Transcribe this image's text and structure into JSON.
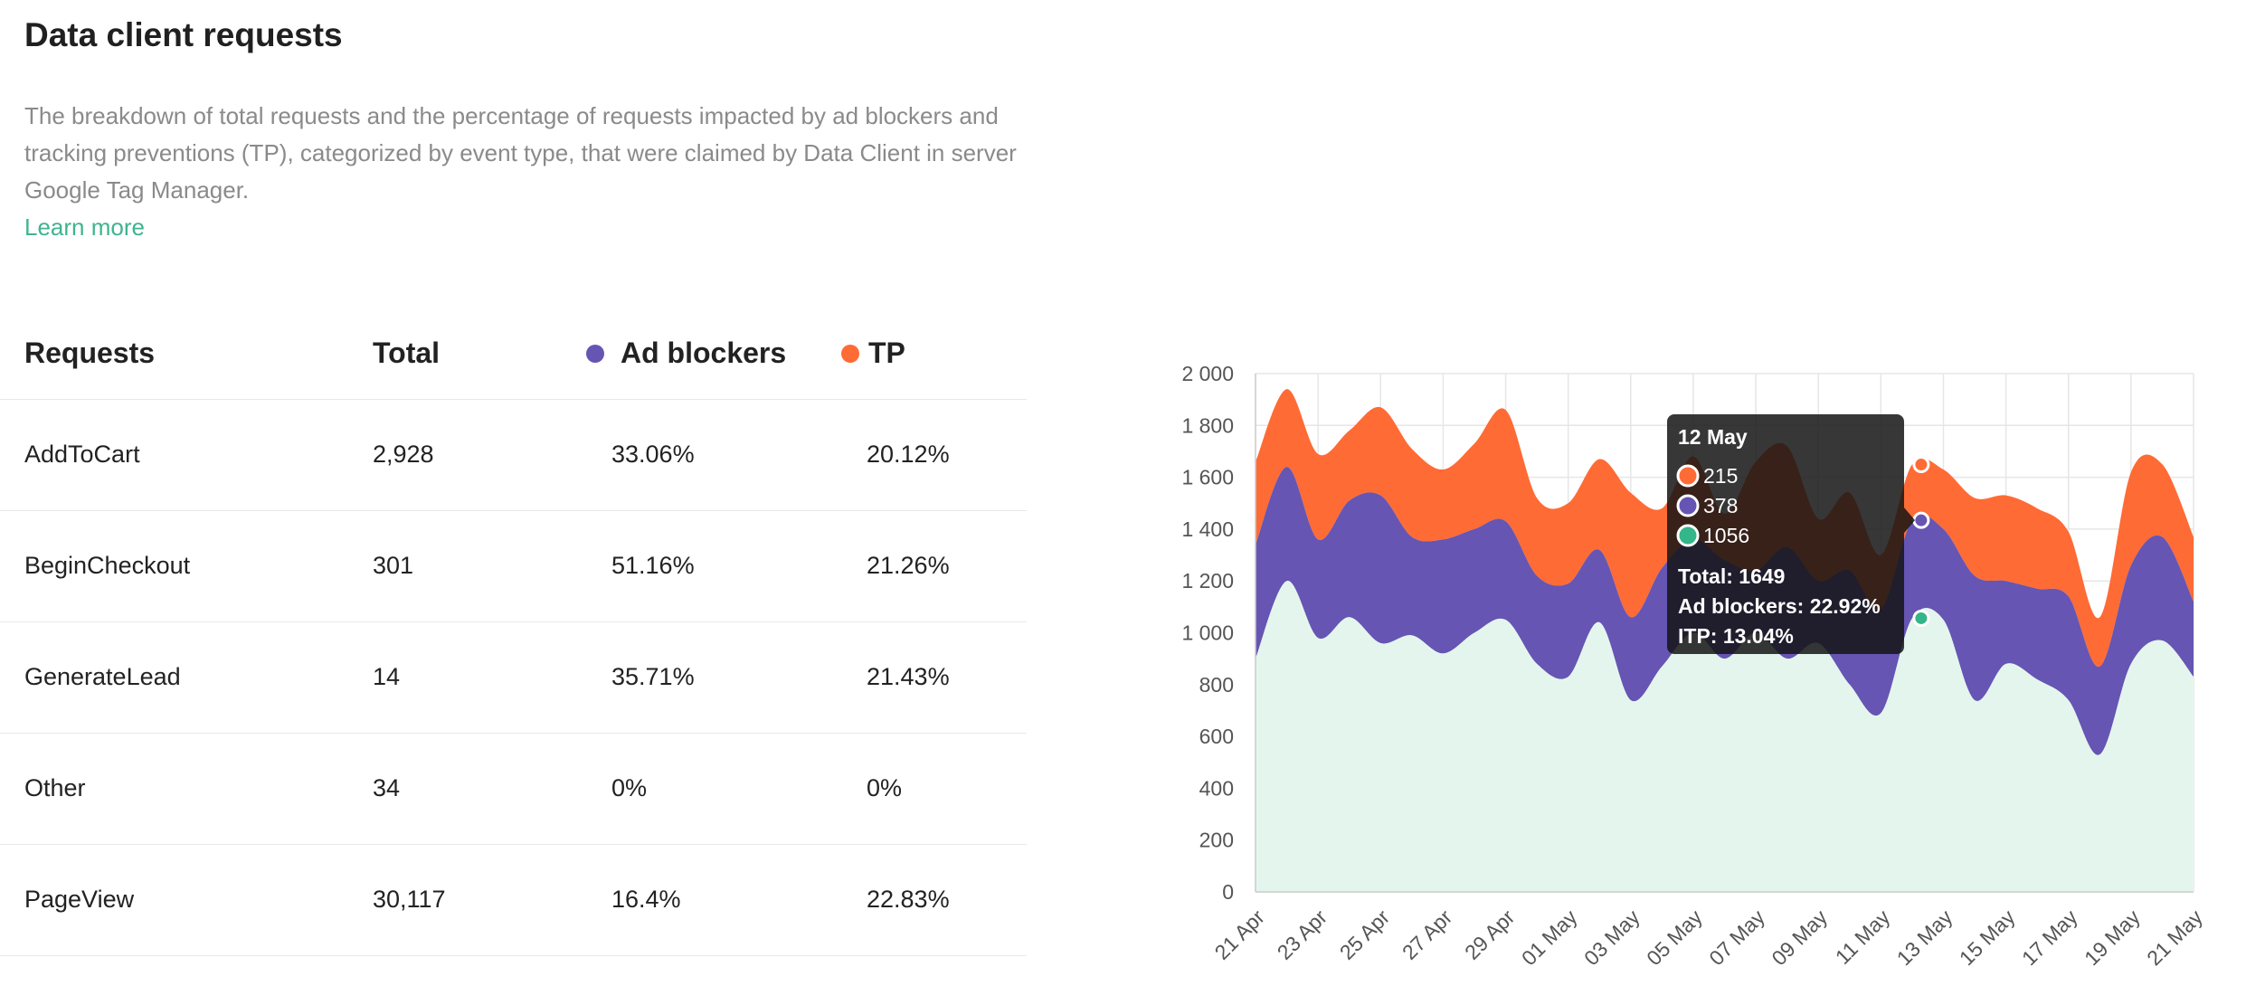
{
  "header": {
    "title": "Data client requests",
    "description": "The breakdown of total requests and the percentage of requests impacted by ad blockers and tracking preventions (TP), categorized by event type, that were claimed by Data Client in server Google Tag Manager.",
    "learn_more": "Learn more"
  },
  "table": {
    "columns": [
      "Requests",
      "Total",
      "Ad blockers",
      "TP"
    ],
    "rows": [
      {
        "name": "AddToCart",
        "total": "2,928",
        "ad": "33.06%",
        "tp": "20.12%"
      },
      {
        "name": "BeginCheckout",
        "total": "301",
        "ad": "51.16%",
        "tp": "21.26%"
      },
      {
        "name": "GenerateLead",
        "total": "14",
        "ad": "35.71%",
        "tp": "21.43%"
      },
      {
        "name": "Other",
        "total": "34",
        "ad": "0%",
        "tp": "0%"
      },
      {
        "name": "PageView",
        "total": "30,117",
        "ad": "16.4%",
        "tp": "22.83%"
      }
    ]
  },
  "colors": {
    "ad_blockers": "#6655b3",
    "tp": "#ff6b35",
    "base": "#e4f5ee",
    "base_marker": "#34b58a",
    "link": "#3fb48f"
  },
  "chart_data": {
    "type": "area",
    "stacked": true,
    "x": [
      "21 Apr",
      "22 Apr",
      "23 Apr",
      "24 Apr",
      "25 Apr",
      "26 Apr",
      "27 Apr",
      "28 Apr",
      "29 Apr",
      "30 Apr",
      "01 May",
      "02 May",
      "03 May",
      "04 May",
      "05 May",
      "06 May",
      "07 May",
      "08 May",
      "09 May",
      "10 May",
      "11 May",
      "12 May",
      "13 May",
      "14 May",
      "15 May",
      "16 May",
      "17 May",
      "18 May",
      "19 May",
      "20 May",
      "21 May"
    ],
    "xticks": [
      "21 Apr",
      "23 Apr",
      "25 Apr",
      "27 Apr",
      "29 Apr",
      "01 May",
      "03 May",
      "05 May",
      "07 May",
      "09 May",
      "11 May",
      "13 May",
      "15 May",
      "17 May",
      "19 May",
      "21 May"
    ],
    "series": [
      {
        "values": [
          900,
          1200,
          980,
          1060,
          960,
          990,
          920,
          1000,
          1050,
          880,
          830,
          1040,
          740,
          870,
          1000,
          900,
          1000,
          900,
          960,
          800,
          690,
          1056,
          1050,
          740,
          880,
          820,
          740,
          530,
          880,
          970,
          830
        ]
      },
      {
        "values": [
          440,
          440,
          380,
          450,
          570,
          380,
          440,
          400,
          380,
          340,
          360,
          280,
          320,
          380,
          360,
          380,
          240,
          430,
          240,
          440,
          400,
          378,
          350,
          480,
          320,
          350,
          400,
          340,
          380,
          400,
          290
        ]
      },
      {
        "values": [
          320,
          300,
          330,
          270,
          340,
          340,
          270,
          330,
          430,
          300,
          310,
          350,
          480,
          230,
          320,
          180,
          420,
          390,
          240,
          300,
          210,
          215,
          230,
          300,
          330,
          310,
          250,
          190,
          360,
          280,
          250
        ]
      }
    ],
    "ylim": [
      0,
      2000
    ],
    "yticks": [
      0,
      200,
      400,
      600,
      800,
      1000,
      1200,
      1400,
      1600,
      1800,
      2000
    ],
    "ytick_labels": [
      "0",
      "200",
      "400",
      "600",
      "800",
      "1 000",
      "1 200",
      "1 400",
      "1 600",
      "1 800",
      "2 000"
    ],
    "grid": true,
    "tooltip": {
      "date": "12 May",
      "values": [
        "215",
        "378",
        "1056"
      ],
      "total": "Total: 1649",
      "ad_blockers": "Ad blockers: 22.92%",
      "itp": "ITP: 13.04%"
    }
  }
}
